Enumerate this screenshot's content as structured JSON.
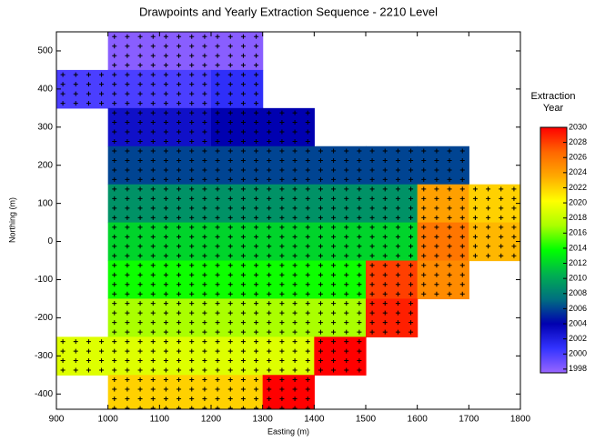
{
  "chart_data": {
    "type": "heatmap",
    "title": "Drawpoints and Yearly Extraction Sequence - 2210 Level",
    "xlabel": "Easting (m)",
    "ylabel": "Northing (m)",
    "colorbar_title": [
      "Extraction",
      "Year"
    ],
    "xlim": [
      900,
      1800
    ],
    "ylim": [
      -440,
      550
    ],
    "xticks": [
      900,
      1000,
      1100,
      1200,
      1300,
      1400,
      1500,
      1600,
      1700,
      1800
    ],
    "yticks": [
      -400,
      -300,
      -200,
      -100,
      0,
      100,
      200,
      300,
      400,
      500
    ],
    "clim": [
      1997.5,
      2030
    ],
    "cticks": [
      1998,
      2000,
      2002,
      2004,
      2006,
      2008,
      2010,
      2012,
      2014,
      2016,
      2018,
      2020,
      2022,
      2024,
      2026,
      2028,
      2030
    ],
    "colors": [
      "#9966ff",
      "#3333ff",
      "#0000b0",
      "#006f80",
      "#00b050",
      "#00ff00",
      "#aaff00",
      "#ffff00",
      "#ffaa00",
      "#ff6600",
      "#ff0000"
    ],
    "x": [
      1050,
      1150,
      1250,
      950,
      1050,
      1150,
      1250,
      1050,
      1150,
      1250,
      1350,
      1050,
      1150,
      1250,
      1350,
      1450,
      1550,
      1650,
      1050,
      1150,
      1250,
      1350,
      1450,
      1550,
      1650,
      1750,
      1050,
      1150,
      1250,
      1350,
      1450,
      1550,
      1650,
      1750,
      1050,
      1150,
      1250,
      1350,
      1450,
      1550,
      1650,
      1050,
      1150,
      1250,
      1350,
      1450,
      1550,
      950,
      1050,
      1150,
      1250,
      1350,
      1450,
      1050,
      1150,
      1250,
      1350
    ],
    "y": [
      500,
      500,
      500,
      400,
      400,
      400,
      400,
      300,
      300,
      300,
      300,
      200,
      200,
      200,
      200,
      200,
      200,
      200,
      100,
      100,
      100,
      100,
      100,
      100,
      100,
      100,
      0,
      0,
      0,
      0,
      0,
      0,
      0,
      0,
      -100,
      -100,
      -100,
      -100,
      -100,
      -100,
      -100,
      -200,
      -200,
      -200,
      -200,
      -200,
      -200,
      -300,
      -300,
      -300,
      -300,
      -300,
      -300,
      -400,
      -400,
      -400,
      -400
    ],
    "values": [
      1998,
      1998,
      1998,
      2000,
      2000,
      2000,
      2001,
      2003,
      2003,
      2004,
      2004,
      2006,
      2006,
      2006,
      2006,
      2006,
      2006,
      2006,
      2009,
      2009,
      2009,
      2009,
      2009,
      2009,
      2024,
      2022,
      2012,
      2012,
      2012,
      2012,
      2012,
      2012,
      2026,
      2023,
      2014,
      2014,
      2014,
      2014,
      2014,
      2028,
      2025,
      2017,
      2017,
      2017,
      2017,
      2017,
      2029,
      2019,
      2019,
      2019,
      2019,
      2019,
      2030,
      2022,
      2022,
      2022,
      2030
    ]
  }
}
